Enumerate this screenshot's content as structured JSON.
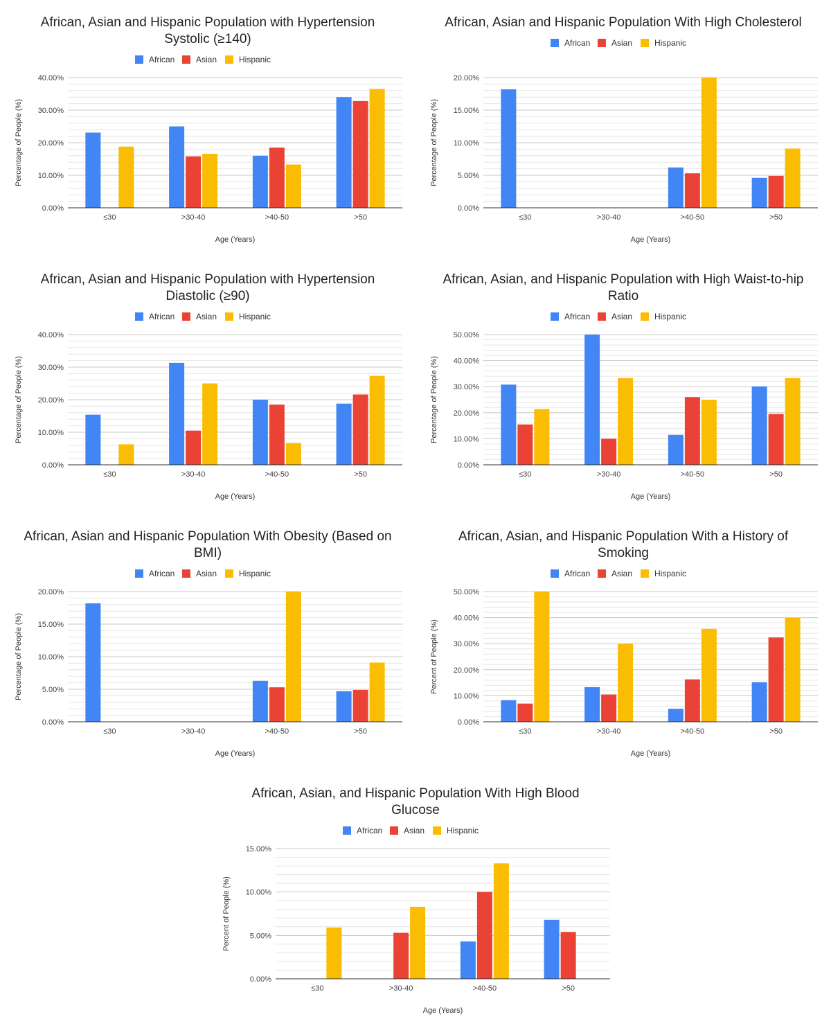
{
  "series_colors": {
    "African": "#4285F4",
    "Asian": "#EA4335",
    "Hispanic": "#FBBC04"
  },
  "chart_data": [
    {
      "type": "bar",
      "title": "African, Asian and Hispanic Population with Hypertension Systolic (≥140)",
      "title_lines": [
        "African, Asian and Hispanic Population with Hypertension",
        "Systolic (≥140)"
      ],
      "xlabel": "Age (Years)",
      "ylabel": "Percentage of People (%)",
      "categories": [
        "≤30",
        ">30-40",
        ">40-50",
        ">50"
      ],
      "ylim": [
        0,
        40
      ],
      "yticks": [
        "0.00%",
        "10.00%",
        "20.00%",
        "30.00%",
        "40.00%"
      ],
      "grid": true,
      "legend": "top",
      "series": [
        {
          "name": "African",
          "values": [
            23.1,
            25.0,
            16.0,
            34.0
          ]
        },
        {
          "name": "Asian",
          "values": [
            0,
            15.8,
            18.5,
            32.8
          ]
        },
        {
          "name": "Hispanic",
          "values": [
            18.8,
            16.6,
            13.3,
            36.5
          ]
        }
      ]
    },
    {
      "type": "bar",
      "title": "African, Asian and Hispanic Population With High Cholesterol",
      "title_lines": [
        "African, Asian and Hispanic Population With High Cholesterol"
      ],
      "xlabel": "Age (Years)",
      "ylabel": "Percentage of People (%)",
      "categories": [
        "≤30",
        ">30-40",
        ">40-50",
        ">50"
      ],
      "ylim": [
        0,
        20
      ],
      "yticks": [
        "0.00%",
        "5.00%",
        "10.00%",
        "15.00%",
        "20.00%"
      ],
      "grid": true,
      "legend": "top",
      "series": [
        {
          "name": "African",
          "values": [
            18.2,
            0,
            6.2,
            4.6
          ]
        },
        {
          "name": "Asian",
          "values": [
            0,
            0,
            5.3,
            4.9
          ]
        },
        {
          "name": "Hispanic",
          "values": [
            0,
            0,
            20.0,
            9.1
          ]
        }
      ]
    },
    {
      "type": "bar",
      "title": "African, Asian and Hispanic Population with Hypertension Diastolic (≥90)",
      "title_lines": [
        "African, Asian and Hispanic Population with Hypertension",
        "Diastolic (≥90)"
      ],
      "xlabel": "Age (Years)",
      "ylabel": "Percentage of People (%)",
      "categories": [
        "≤30",
        ">30-40",
        ">40-50",
        ">50"
      ],
      "ylim": [
        0,
        40
      ],
      "yticks": [
        "0.00%",
        "10.00%",
        "20.00%",
        "30.00%",
        "40.00%"
      ],
      "grid": true,
      "legend": "top",
      "series": [
        {
          "name": "African",
          "values": [
            15.4,
            31.3,
            20.0,
            18.8
          ]
        },
        {
          "name": "Asian",
          "values": [
            0,
            10.5,
            18.5,
            21.6
          ]
        },
        {
          "name": "Hispanic",
          "values": [
            6.3,
            25.0,
            6.7,
            27.3
          ]
        }
      ]
    },
    {
      "type": "bar",
      "title": "African, Asian, and Hispanic Population with High Waist-to-hip Ratio",
      "title_lines": [
        "African, Asian, and Hispanic Population with High Waist-to-hip",
        "Ratio"
      ],
      "xlabel": "Age (Years)",
      "ylabel": "Percentage of People (%)",
      "categories": [
        "≤30",
        ">30-40",
        ">40-50",
        ">50"
      ],
      "ylim": [
        0,
        50
      ],
      "yticks": [
        "0.00%",
        "10.00%",
        "20.00%",
        "30.00%",
        "40.00%",
        "50.00%"
      ],
      "grid": true,
      "legend": "top",
      "series": [
        {
          "name": "African",
          "values": [
            30.8,
            50.0,
            11.5,
            30.1
          ]
        },
        {
          "name": "Asian",
          "values": [
            15.5,
            10.0,
            26.0,
            19.5
          ]
        },
        {
          "name": "Hispanic",
          "values": [
            21.4,
            33.3,
            25.0,
            33.3
          ]
        }
      ]
    },
    {
      "type": "bar",
      "title": "African, Asian and Hispanic Population With Obesity (Based on BMI)",
      "title_lines": [
        "African, Asian and Hispanic Population With Obesity (Based on",
        "BMI)"
      ],
      "xlabel": "Age (Years)",
      "ylabel": "Percentage of People (%)",
      "categories": [
        "≤30",
        ">30-40",
        ">40-50",
        ">50"
      ],
      "ylim": [
        0,
        20
      ],
      "yticks": [
        "0.00%",
        "5.00%",
        "10.00%",
        "15.00%",
        "20.00%"
      ],
      "grid": true,
      "legend": "top",
      "series": [
        {
          "name": "African",
          "values": [
            18.2,
            0,
            6.3,
            4.7
          ]
        },
        {
          "name": "Asian",
          "values": [
            0,
            0,
            5.3,
            4.9
          ]
        },
        {
          "name": "Hispanic",
          "values": [
            0,
            0,
            20.0,
            9.1
          ]
        }
      ]
    },
    {
      "type": "bar",
      "title": "African, Asian, and Hispanic Population With a History of Smoking",
      "title_lines": [
        "African, Asian, and Hispanic Population With a History of",
        "Smoking"
      ],
      "xlabel": "Age (Years)",
      "ylabel": "Percent of People (%)",
      "categories": [
        "≤30",
        ">30-40",
        ">40-50",
        ">50"
      ],
      "ylim": [
        0,
        50
      ],
      "yticks": [
        "0.00%",
        "10.00%",
        "20.00%",
        "30.00%",
        "40.00%",
        "50.00%"
      ],
      "grid": true,
      "legend": "top",
      "series": [
        {
          "name": "African",
          "values": [
            8.3,
            13.3,
            5.0,
            15.2
          ]
        },
        {
          "name": "Asian",
          "values": [
            7.0,
            10.5,
            16.3,
            32.4
          ]
        },
        {
          "name": "Hispanic",
          "values": [
            50.0,
            30.0,
            35.7,
            40.0
          ]
        }
      ]
    },
    {
      "type": "bar",
      "title": "African, Asian, and Hispanic Population With High Blood Glucose",
      "title_lines": [
        "African, Asian, and Hispanic Population With High Blood",
        "Glucose"
      ],
      "xlabel": "Age (Years)",
      "ylabel": "Percent of People (%)",
      "categories": [
        "≤30",
        ">30-40",
        ">40-50",
        ">50"
      ],
      "ylim": [
        0,
        15
      ],
      "yticks": [
        "0.00%",
        "5.00%",
        "10.00%",
        "15.00%"
      ],
      "grid": true,
      "legend": "top",
      "series": [
        {
          "name": "African",
          "values": [
            0,
            0,
            4.3,
            6.8
          ]
        },
        {
          "name": "Asian",
          "values": [
            0,
            5.3,
            10.0,
            5.4
          ]
        },
        {
          "name": "Hispanic",
          "values": [
            5.9,
            8.3,
            13.3,
            0
          ]
        }
      ]
    }
  ]
}
